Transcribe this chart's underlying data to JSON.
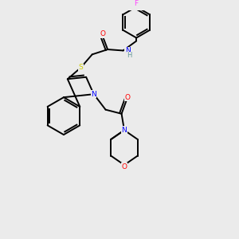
{
  "background_color": "#ebebeb",
  "atom_colors": {
    "C": "#000000",
    "N": "#0000ff",
    "O": "#ff0000",
    "S": "#cccc00",
    "F": "#ff44ff",
    "H": "#669999"
  },
  "lw": 1.4,
  "fs": 6.5,
  "xlim": [
    0,
    10
  ],
  "ylim": [
    0,
    10
  ]
}
